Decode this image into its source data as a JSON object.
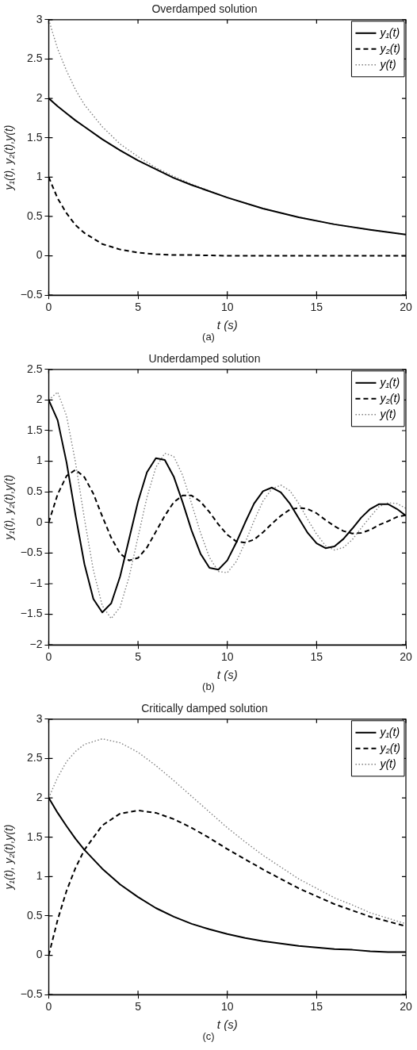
{
  "chart_data": [
    {
      "type": "line",
      "title": "Overdamped solution",
      "xlabel": "t (s)",
      "ylabel": "y₁(t), y₂(t),y(t)",
      "annotations": [
        "(a)"
      ],
      "x": [
        0,
        0.5,
        1,
        1.5,
        2,
        3,
        4,
        5,
        6,
        7,
        8,
        10,
        12,
        14,
        16,
        18,
        20
      ],
      "series": [
        {
          "name": "y₁(t)",
          "color": "#000000",
          "line_style": "solid",
          "values": [
            2,
            1.9,
            1.81,
            1.72,
            1.64,
            1.48,
            1.34,
            1.21,
            1.1,
            0.99,
            0.9,
            0.74,
            0.6,
            0.49,
            0.4,
            0.33,
            0.27
          ]
        },
        {
          "name": "y₂(t)",
          "color": "#000000",
          "line_style": "dashed",
          "values": [
            1,
            0.73,
            0.54,
            0.39,
            0.29,
            0.15,
            0.08,
            0.04,
            0.02,
            0.01,
            0.01,
            0,
            0,
            0,
            0,
            0,
            0
          ]
        },
        {
          "name": "y(t)",
          "color": "#808080",
          "line_style": "dotted",
          "values": [
            3,
            2.63,
            2.35,
            2.11,
            1.92,
            1.64,
            1.42,
            1.26,
            1.12,
            1.01,
            0.91,
            0.74,
            0.6,
            0.49,
            0.4,
            0.33,
            0.27
          ]
        }
      ],
      "xlim": [
        0,
        20
      ],
      "xticks": [
        0,
        5,
        10,
        15,
        20
      ],
      "ylim": [
        -0.5,
        3
      ],
      "yticks": [
        -0.5,
        0,
        0.5,
        1,
        1.5,
        2,
        2.5,
        3
      ],
      "grid": false,
      "legend": "top right"
    },
    {
      "type": "line",
      "title": "Underdamped solution",
      "xlabel": "t (s)",
      "ylabel": "y₁(t), y₂(t),y(t)",
      "annotations": [
        "(b)"
      ],
      "x": [
        0,
        0.5,
        1,
        1.5,
        2,
        2.5,
        3,
        3.5,
        4,
        4.5,
        5,
        5.5,
        6,
        6.5,
        7,
        7.5,
        8,
        8.5,
        9,
        9.5,
        10,
        10.5,
        11,
        11.5,
        12,
        12.5,
        13,
        13.5,
        14,
        14.5,
        15,
        15.5,
        16,
        16.5,
        17,
        17.5,
        18,
        18.5,
        19,
        19.5,
        20
      ],
      "series": [
        {
          "name": "y₁(t)",
          "color": "#000000",
          "line_style": "solid",
          "values": [
            2,
            1.67,
            0.98,
            0.12,
            -0.68,
            -1.25,
            -1.47,
            -1.32,
            -0.88,
            -0.27,
            0.34,
            0.82,
            1.05,
            1.02,
            0.75,
            0.33,
            -0.13,
            -0.51,
            -0.74,
            -0.77,
            -0.62,
            -0.33,
            0,
            0.31,
            0.51,
            0.57,
            0.49,
            0.31,
            0.07,
            -0.17,
            -0.34,
            -0.42,
            -0.39,
            -0.27,
            -0.1,
            0.08,
            0.22,
            0.3,
            0.3,
            0.22,
            0.11
          ]
        },
        {
          "name": "y₂(t)",
          "color": "#000000",
          "line_style": "dashed",
          "values": [
            0,
            0.46,
            0.76,
            0.86,
            0.74,
            0.47,
            0.1,
            -0.25,
            -0.51,
            -0.62,
            -0.58,
            -0.41,
            -0.15,
            0.11,
            0.33,
            0.44,
            0.44,
            0.34,
            0.17,
            -0.03,
            -0.2,
            -0.31,
            -0.33,
            -0.28,
            -0.16,
            -0.02,
            0.11,
            0.21,
            0.24,
            0.22,
            0.15,
            0.04,
            -0.06,
            -0.14,
            -0.18,
            -0.17,
            -0.12,
            -0.04,
            0.02,
            0.09,
            0.12
          ]
        },
        {
          "name": "y(t)",
          "color": "#808080",
          "line_style": "dotted",
          "values": [
            2,
            2.13,
            1.74,
            0.98,
            0.06,
            -0.78,
            -1.36,
            -1.57,
            -1.38,
            -0.89,
            -0.24,
            0.41,
            0.9,
            1.13,
            1.08,
            0.77,
            0.31,
            -0.17,
            -0.57,
            -0.8,
            -0.82,
            -0.64,
            -0.33,
            0.03,
            0.35,
            0.55,
            0.61,
            0.52,
            0.31,
            0.05,
            -0.19,
            -0.38,
            -0.45,
            -0.41,
            -0.28,
            -0.09,
            0.09,
            0.26,
            0.32,
            0.31,
            0.23
          ]
        }
      ],
      "xlim": [
        0,
        20
      ],
      "xticks": [
        0,
        5,
        10,
        15,
        20
      ],
      "ylim": [
        -2,
        2.5
      ],
      "yticks": [
        -2,
        -1.5,
        -1,
        -0.5,
        0,
        0.5,
        1,
        1.5,
        2,
        2.5
      ],
      "grid": false,
      "legend": "top right"
    },
    {
      "type": "line",
      "title": "Critically damped solution",
      "xlabel": "t (s)",
      "ylabel": "y₁(t), y₂(t),y(t)",
      "annotations": [
        "(c)"
      ],
      "x": [
        0,
        0.5,
        1,
        1.5,
        2,
        3,
        4,
        5,
        6,
        7,
        8,
        9,
        10,
        11,
        12,
        13,
        14,
        15,
        16,
        17,
        18,
        19,
        20
      ],
      "series": [
        {
          "name": "y₁(t)",
          "color": "#000000",
          "line_style": "solid",
          "values": [
            2,
            1.81,
            1.64,
            1.48,
            1.34,
            1.1,
            0.9,
            0.74,
            0.6,
            0.49,
            0.4,
            0.33,
            0.27,
            0.22,
            0.18,
            0.15,
            0.12,
            0.1,
            0.08,
            0.07,
            0.05,
            0.04,
            0.04
          ]
        },
        {
          "name": "y₂(t)",
          "color": "#000000",
          "line_style": "dashed",
          "values": [
            0,
            0.45,
            0.82,
            1.11,
            1.34,
            1.65,
            1.8,
            1.84,
            1.81,
            1.73,
            1.62,
            1.49,
            1.35,
            1.22,
            1.09,
            0.97,
            0.85,
            0.75,
            0.65,
            0.57,
            0.49,
            0.43,
            0.37
          ]
        },
        {
          "name": "y(t)",
          "color": "#808080",
          "line_style": "dotted",
          "values": [
            2,
            2.26,
            2.46,
            2.59,
            2.68,
            2.75,
            2.7,
            2.58,
            2.41,
            2.22,
            2.02,
            1.82,
            1.62,
            1.44,
            1.27,
            1.12,
            0.97,
            0.85,
            0.73,
            0.64,
            0.54,
            0.47,
            0.4
          ]
        }
      ],
      "xlim": [
        0,
        20
      ],
      "xticks": [
        0,
        5,
        10,
        15,
        20
      ],
      "ylim": [
        -0.5,
        3
      ],
      "yticks": [
        -0.5,
        0,
        0.5,
        1,
        1.5,
        2,
        2.5,
        3
      ],
      "grid": false,
      "legend": "top right"
    }
  ]
}
